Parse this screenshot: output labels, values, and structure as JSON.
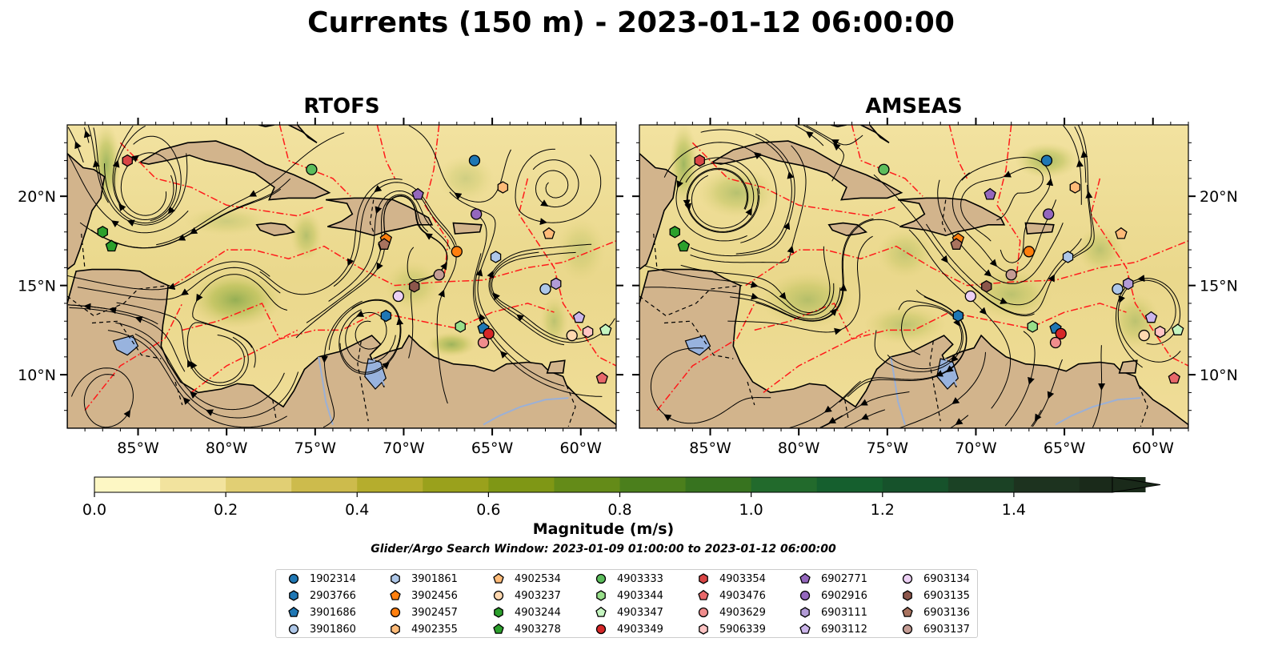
{
  "title": "Currents (150 m) - 2023-01-12 06:00:00",
  "panels": [
    {
      "title": "RTOFS",
      "green_spots": [
        [
          -79.5,
          14.2,
          2.6,
          1.6,
          0.55
        ],
        [
          -86.8,
          21.8,
          0.8,
          2.3,
          0.5
        ],
        [
          -67.3,
          11.7,
          1.4,
          0.7,
          0.5
        ],
        [
          -75.5,
          17.8,
          0.9,
          1.4,
          0.35
        ],
        [
          -69.5,
          15.0,
          1.6,
          1.4,
          0.25
        ],
        [
          -61.5,
          13.0,
          0.8,
          1.4,
          0.3
        ],
        [
          -85.5,
          9.5,
          1.0,
          1.5,
          0.25
        ],
        [
          -66.5,
          21.0,
          1.6,
          1.3,
          0.2
        ],
        [
          -60.0,
          17.0,
          1.4,
          1.8,
          0.2
        ],
        [
          -80.0,
          18.6,
          2.4,
          0.8,
          0.2
        ]
      ]
    },
    {
      "title": "AMSEAS",
      "green_spots": [
        [
          -83.5,
          20.2,
          2.2,
          1.4,
          0.35
        ],
        [
          -86.5,
          21.8,
          0.8,
          2.3,
          0.5
        ],
        [
          -79.5,
          14.2,
          2.6,
          1.6,
          0.35
        ],
        [
          -66.0,
          22.0,
          1.8,
          1.0,
          0.45
        ],
        [
          -68.0,
          14.5,
          2.3,
          1.4,
          0.3
        ],
        [
          -61.0,
          13.0,
          1.4,
          1.6,
          0.3
        ],
        [
          -74.0,
          12.8,
          2.3,
          1.1,
          0.3
        ],
        [
          -74.0,
          16.8,
          1.6,
          1.4,
          0.25
        ],
        [
          -63.0,
          17.0,
          1.3,
          1.3,
          0.3
        ]
      ]
    }
  ],
  "x_ticks": [
    "85°W",
    "80°W",
    "75°W",
    "70°W",
    "65°W",
    "60°W"
  ],
  "y_ticks": [
    "20°N",
    "15°N",
    "10°N"
  ],
  "colorbar": {
    "label": "Magnitude (m/s)",
    "ticks": [
      "0.0",
      "0.2",
      "0.4",
      "0.6",
      "0.8",
      "1.0",
      "1.2",
      "1.4"
    ],
    "colors": [
      "#fdf7c4",
      "#f2e39e",
      "#e1cf74",
      "#cdbb4c",
      "#b5ad2d",
      "#9aa11c",
      "#7f9715",
      "#648b18",
      "#4b7f1c",
      "#37731f",
      "#226a2c",
      "#155f2e",
      "#16522b",
      "#1b4225",
      "#1d331f",
      "#1a2a1a"
    ]
  },
  "window_note": "Glider/Argo Search Window: 2023-01-09 01:00:00 to 2023-01-12 06:00:00",
  "chart_data": {
    "type": "map",
    "title": "Currents (150 m) - 2023-01-12 06:00:00",
    "panels": [
      "RTOFS",
      "AMSEAS"
    ],
    "xlim": [
      -89,
      -58
    ],
    "ylim": [
      7,
      24
    ],
    "colorbar_range": [
      0,
      1.55
    ],
    "floats": [
      {
        "id": "1902314",
        "color": "#1f77b4",
        "marker": "circle",
        "lon": -66,
        "lat": 22.0
      },
      {
        "id": "2903766",
        "color": "#1f77b4",
        "marker": "hexagon",
        "lon": -71,
        "lat": 13.3
      },
      {
        "id": "3901686",
        "color": "#1f77b4",
        "marker": "pentagon",
        "lon": -65.5,
        "lat": 12.6
      },
      {
        "id": "3901860",
        "color": "#aec7e8",
        "marker": "circle",
        "lon": -62,
        "lat": 14.8
      },
      {
        "id": "3901861",
        "color": "#aec7e8",
        "marker": "hexagon",
        "lon": -64.8,
        "lat": 16.6
      },
      {
        "id": "3902456",
        "color": "#ff7f0e",
        "marker": "pentagon",
        "lon": -71.0,
        "lat": 17.6
      },
      {
        "id": "3902457",
        "color": "#ff7f0e",
        "marker": "circle",
        "lon": -67,
        "lat": 16.9
      },
      {
        "id": "4902355",
        "color": "#ffbb78",
        "marker": "hexagon",
        "lon": -64.4,
        "lat": 20.5
      },
      {
        "id": "4902534",
        "color": "#ffbb78",
        "marker": "pentagon",
        "lon": -61.8,
        "lat": 17.9
      },
      {
        "id": "4903237",
        "color": "#ffd8b0",
        "marker": "circle",
        "lon": -60.5,
        "lat": 12.2
      },
      {
        "id": "4903244",
        "color": "#2ca02c",
        "marker": "hexagon",
        "lon": -87.0,
        "lat": 18.0
      },
      {
        "id": "4903278",
        "color": "#2ca02c",
        "marker": "pentagon",
        "lon": -86.5,
        "lat": 17.2
      },
      {
        "id": "4903333",
        "color": "#5cbd5c",
        "marker": "circle",
        "lon": -75.2,
        "lat": 21.5
      },
      {
        "id": "4903344",
        "color": "#98df8a",
        "marker": "hexagon",
        "lon": -66.8,
        "lat": 12.7
      },
      {
        "id": "4903347",
        "color": "#c5f5c0",
        "marker": "pentagon",
        "lon": -58.6,
        "lat": 12.5
      },
      {
        "id": "4903349",
        "color": "#d62728",
        "marker": "circle",
        "lon": -65.2,
        "lat": 12.3
      },
      {
        "id": "4903354",
        "color": "#d94545",
        "marker": "hexagon",
        "lon": -85.6,
        "lat": 22.0
      },
      {
        "id": "4903476",
        "color": "#e8686a",
        "marker": "pentagon",
        "lon": -58.8,
        "lat": 9.8
      },
      {
        "id": "4903629",
        "color": "#f08d8d",
        "marker": "circle",
        "lon": -65.5,
        "lat": 11.8
      },
      {
        "id": "5906339",
        "color": "#ffc4c4",
        "marker": "hexagon",
        "lon": -59.6,
        "lat": 12.4
      },
      {
        "id": "6902771",
        "color": "#9467bd",
        "marker": "pentagon",
        "lon": -69.2,
        "lat": 20.1
      },
      {
        "id": "6902916",
        "color": "#9467bd",
        "marker": "circle",
        "lon": -65.9,
        "lat": 19.0
      },
      {
        "id": "6903111",
        "color": "#b29bd6",
        "marker": "hexagon",
        "lon": -61.4,
        "lat": 15.1
      },
      {
        "id": "6903112",
        "color": "#cbb5ea",
        "marker": "pentagon",
        "lon": -60.1,
        "lat": 13.2
      },
      {
        "id": "6903134",
        "color": "#ecd0f4",
        "marker": "circle",
        "lon": -70.3,
        "lat": 14.4
      },
      {
        "id": "6903135",
        "color": "#8c564b",
        "marker": "hexagon",
        "lon": -69.4,
        "lat": 14.95
      },
      {
        "id": "6903136",
        "color": "#a9735f",
        "marker": "pentagon",
        "lon": -71.1,
        "lat": 17.3
      },
      {
        "id": "6903137",
        "color": "#c49c94",
        "marker": "circle",
        "lon": -68.0,
        "lat": 15.6
      }
    ]
  }
}
